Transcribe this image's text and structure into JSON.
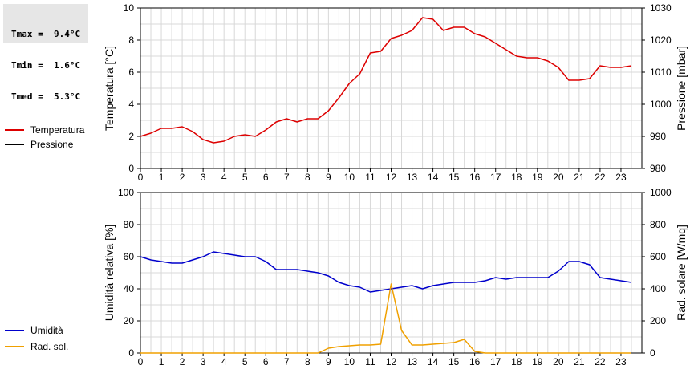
{
  "stats": {
    "tmax": "Tmax =  9.4°C",
    "tmin": "Tmin =  1.6°C",
    "tmed": "Tmed =  5.3°C"
  },
  "legend_top": [
    {
      "label": "Temperatura",
      "color": "#dd0000"
    },
    {
      "label": "Pressione",
      "color": "#000000"
    }
  ],
  "legend_bottom": [
    {
      "label": "Umidità",
      "color": "#0000cc"
    },
    {
      "label": "Rad. sol.",
      "color": "#f0a000"
    }
  ],
  "chart_data": [
    {
      "type": "line",
      "ylabel": "Temperatura [°C]",
      "y2label": "Pressione [mbar]",
      "xlim": [
        0,
        24
      ],
      "ylim": [
        0,
        10
      ],
      "y2lim": [
        980,
        1030
      ],
      "x_ticks": [
        "0",
        "1",
        "2",
        "3",
        "4",
        "5",
        "6",
        "7",
        "8",
        "9",
        "10",
        "11",
        "12",
        "13",
        "14",
        "15",
        "16",
        "17",
        "18",
        "19",
        "20",
        "21",
        "22",
        "23"
      ],
      "y_ticks": [
        "0",
        "2",
        "4",
        "6",
        "8",
        "10"
      ],
      "y2_ticks": [
        "980",
        "990",
        "1000",
        "1010",
        "1020",
        "1030"
      ],
      "grid": true,
      "series": [
        {
          "name": "Temperatura",
          "color": "#dd0000",
          "axis": "left",
          "x": [
            0,
            0.5,
            1,
            1.5,
            2,
            2.5,
            3,
            3.5,
            4,
            4.5,
            5,
            5.5,
            6,
            6.5,
            7,
            7.5,
            8,
            8.5,
            9,
            9.5,
            10,
            10.5,
            11,
            11.5,
            12,
            12.5,
            13,
            13.5,
            14,
            14.5,
            15,
            15.5,
            16,
            16.5,
            17,
            17.5,
            18,
            18.5,
            19,
            19.5,
            20,
            20.5,
            21,
            21.5,
            22,
            22.5,
            23,
            23.5
          ],
          "y": [
            2.0,
            2.2,
            2.5,
            2.5,
            2.6,
            2.3,
            1.8,
            1.6,
            1.7,
            2.0,
            2.1,
            2.0,
            2.4,
            2.9,
            3.1,
            2.9,
            3.1,
            3.1,
            3.6,
            4.4,
            5.3,
            5.9,
            7.2,
            7.3,
            8.1,
            8.3,
            8.6,
            9.4,
            9.3,
            8.6,
            8.8,
            8.8,
            8.4,
            8.2,
            7.8,
            7.4,
            7.0,
            6.9,
            6.9,
            6.7,
            6.3,
            5.5,
            5.5,
            5.6,
            6.4,
            6.3,
            6.3,
            6.4
          ]
        }
      ]
    },
    {
      "type": "line",
      "ylabel": "Umidità relativa [%]",
      "y2label": "Rad. solare [W/mq]",
      "xlim": [
        0,
        24
      ],
      "ylim": [
        0,
        100
      ],
      "y2lim": [
        0,
        1000
      ],
      "x_ticks": [
        "0",
        "1",
        "2",
        "3",
        "4",
        "5",
        "6",
        "7",
        "8",
        "9",
        "10",
        "11",
        "12",
        "13",
        "14",
        "15",
        "16",
        "17",
        "18",
        "19",
        "20",
        "21",
        "22",
        "23"
      ],
      "y_ticks": [
        "0",
        "20",
        "40",
        "60",
        "80",
        "100"
      ],
      "y2_ticks": [
        "0",
        "200",
        "400",
        "600",
        "800",
        "1000"
      ],
      "grid": true,
      "series": [
        {
          "name": "Umidità",
          "color": "#0000cc",
          "axis": "left",
          "x": [
            0,
            0.5,
            1,
            1.5,
            2,
            2.5,
            3,
            3.5,
            4,
            4.5,
            5,
            5.5,
            6,
            6.5,
            7,
            7.5,
            8,
            8.5,
            9,
            9.5,
            10,
            10.5,
            11,
            11.5,
            12,
            12.5,
            13,
            13.5,
            14,
            14.5,
            15,
            15.5,
            16,
            16.5,
            17,
            17.5,
            18,
            18.5,
            19,
            19.5,
            20,
            20.5,
            21,
            21.5,
            22,
            22.5,
            23,
            23.5
          ],
          "y": [
            60,
            58,
            57,
            56,
            56,
            58,
            60,
            63,
            62,
            61,
            60,
            60,
            57,
            52,
            52,
            52,
            51,
            50,
            48,
            44,
            42,
            41,
            38,
            39,
            40,
            41,
            42,
            40,
            42,
            43,
            44,
            44,
            44,
            45,
            47,
            46,
            47,
            47,
            47,
            47,
            51,
            57,
            57,
            55,
            47,
            46,
            45,
            44
          ]
        },
        {
          "name": "Rad. sol.",
          "color": "#f0a000",
          "axis": "right",
          "x": [
            0,
            0.5,
            1,
            1.5,
            2,
            2.5,
            3,
            3.5,
            4,
            4.5,
            5,
            5.5,
            6,
            6.5,
            7,
            7.5,
            8,
            8.5,
            9,
            9.5,
            10,
            10.5,
            11,
            11.5,
            12,
            12.5,
            13,
            13.5,
            14,
            14.5,
            15,
            15.5,
            16,
            16.5,
            17,
            17.5,
            18,
            18.5,
            19,
            19.5,
            20,
            20.5,
            21,
            21.5,
            22,
            22.5,
            23,
            23.5
          ],
          "y": [
            0,
            0,
            0,
            0,
            0,
            0,
            0,
            0,
            0,
            0,
            0,
            0,
            0,
            0,
            0,
            0,
            0,
            0,
            30,
            40,
            45,
            50,
            50,
            55,
            430,
            140,
            50,
            50,
            55,
            60,
            65,
            85,
            10,
            0,
            0,
            0,
            0,
            0,
            0,
            0,
            0,
            0,
            0,
            0,
            0,
            0,
            0,
            0
          ]
        }
      ]
    }
  ]
}
